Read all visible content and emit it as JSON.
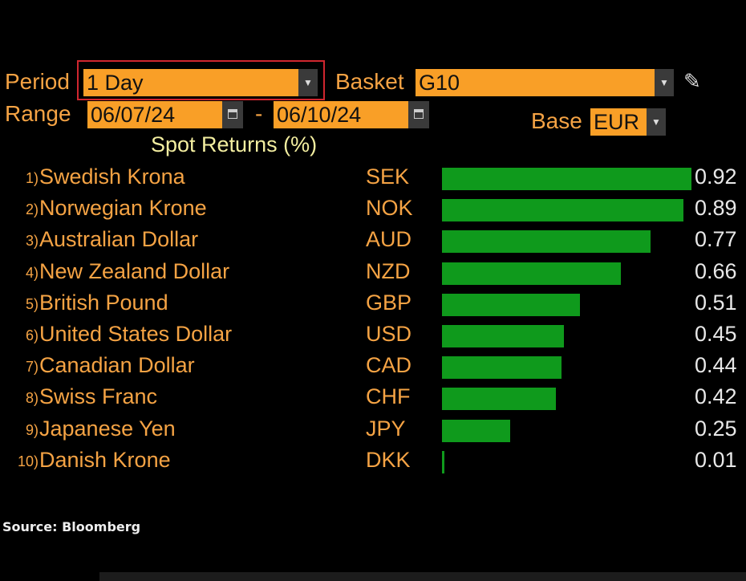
{
  "controls": {
    "period_label": "Period",
    "period_value": "1 Day",
    "basket_label": "Basket",
    "basket_value": "G10",
    "range_label": "Range",
    "range_start": "06/07/24",
    "range_sep": "-",
    "range_end": "06/10/24",
    "base_label": "Base",
    "base_value": "EUR"
  },
  "source": "Source: Bloomberg",
  "colors": {
    "bar": "#0f9a1c",
    "field": "#f99f27",
    "label": "#f5a344",
    "highlight": "#d0262f"
  },
  "chart_data": {
    "type": "bar",
    "orientation": "horizontal",
    "title": "Spot Returns (%)",
    "categories": [
      "Swedish Krona",
      "Norwegian Krone",
      "Australian Dollar",
      "New Zealand Dollar",
      "British Pound",
      "United States Dollar",
      "Canadian Dollar",
      "Swiss Franc",
      "Japanese Yen",
      "Danish Krone"
    ],
    "ranks": [
      "1)",
      "2)",
      "3)",
      "4)",
      "5)",
      "6)",
      "7)",
      "8)",
      "9)",
      "10)"
    ],
    "codes": [
      "SEK",
      "NOK",
      "AUD",
      "NZD",
      "GBP",
      "USD",
      "CAD",
      "CHF",
      "JPY",
      "DKK"
    ],
    "values": [
      0.92,
      0.89,
      0.77,
      0.66,
      0.51,
      0.45,
      0.44,
      0.42,
      0.25,
      0.01
    ],
    "value_labels": [
      "0.92",
      "0.89",
      "0.77",
      "0.66",
      "0.51",
      "0.45",
      "0.44",
      "0.42",
      "0.25",
      "0.01"
    ]
  }
}
